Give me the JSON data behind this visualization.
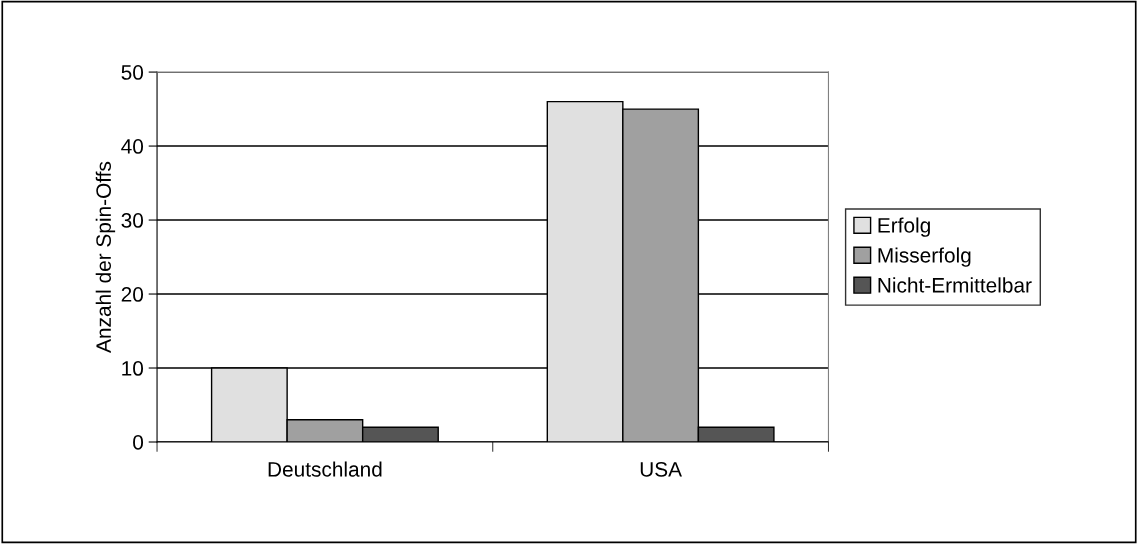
{
  "chart_data": {
    "type": "bar",
    "ylabel": "Anzahl der Spin-Offs",
    "categories": [
      "Deutschland",
      "USA"
    ],
    "series": [
      {
        "name": "Erfolg",
        "color": "#e0e0e0",
        "values": [
          10,
          46
        ]
      },
      {
        "name": "Misserfolg",
        "color": "#a0a0a0",
        "values": [
          3,
          45
        ]
      },
      {
        "name": "Nicht-Ermittelbar",
        "color": "#555555",
        "values": [
          2,
          2
        ]
      }
    ],
    "ylim": [
      0,
      50
    ],
    "yticks": [
      0,
      10,
      20,
      30,
      40,
      50
    ],
    "grid": "y",
    "legend": "right"
  }
}
